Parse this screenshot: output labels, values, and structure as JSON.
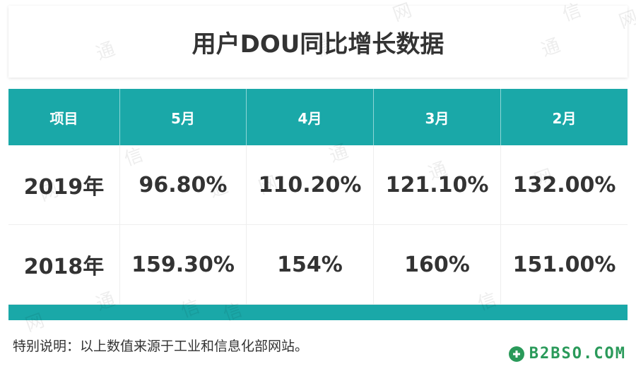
{
  "header": {
    "title": "用户DOU同比增长数据"
  },
  "table": {
    "columns": [
      "项目",
      "5月",
      "4月",
      "3月",
      "2月"
    ],
    "rows": [
      [
        "2019年",
        "96.80%",
        "110.20%",
        "121.10%",
        "132.00%"
      ],
      [
        "2018年",
        "159.30%",
        "154%",
        "160%",
        "151.00%"
      ]
    ]
  },
  "footnote": "特别说明：以上数值来源于工业和信息化部网站。",
  "watermark": [
    "通",
    "信",
    "网"
  ],
  "brand": "B2BSO.COM"
}
